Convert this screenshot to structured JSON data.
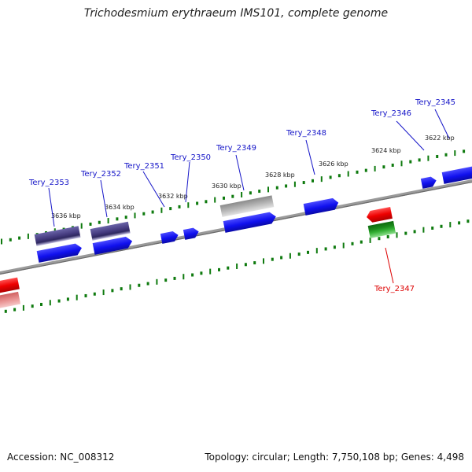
{
  "title": "Trichodesmium erythraeum IMS101, complete genome",
  "footer": {
    "accession": "Accession: NC_008312",
    "topology": "Topology: circular; Length: 7,750,108 bp; Genes: 4,498"
  },
  "colors": {
    "forward_cds": "#1010ee",
    "forward_other": "#443a7e",
    "pseudo": "#a0a0a0",
    "reverse": "#ee0000",
    "rna": "#1b8a1b",
    "label_forward": "#1616c8",
    "label_reverse": "#dd0000",
    "ticks": "#0e7a0e",
    "backbone": "#808080"
  },
  "scale": {
    "tick_labels": [
      "3622 kbp",
      "3624 kbp",
      "3626 kbp",
      "3628 kbp",
      "3630 kbp",
      "3632 kbp",
      "3634 kbp",
      "3636 kbp"
    ]
  },
  "gene_labels": {
    "forward": [
      "Tery_2345",
      "Tery_2346",
      "Tery_2348",
      "Tery_2349",
      "Tery_2350",
      "Tery_2351",
      "Tery_2352",
      "Tery_2353"
    ],
    "reverse": [
      "Tery_2347"
    ]
  }
}
